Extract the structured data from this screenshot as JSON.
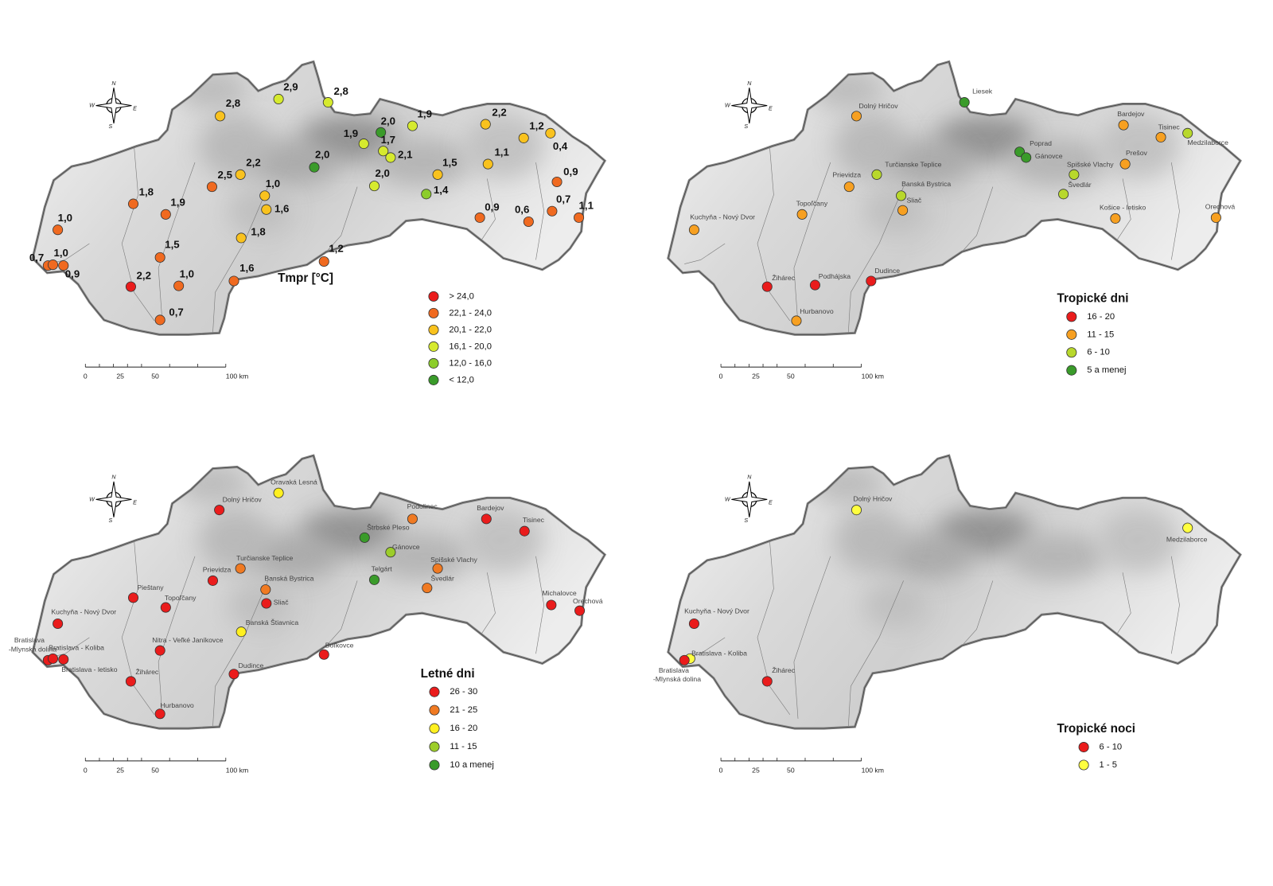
{
  "maps": [
    {
      "legend_title": "Tmpr [°C]",
      "legend": [
        {
          "label": "> 24,0",
          "color": "#ea1c1c"
        },
        {
          "label": "22,1 - 24,0",
          "color": "#f06a20"
        },
        {
          "label": "20,1 - 22,0",
          "color": "#f9c21e"
        },
        {
          "label": "16,1 - 20,0",
          "color": "#d6ea2e"
        },
        {
          "label": "12,0 - 16,0",
          "color": "#8ccd2a"
        },
        {
          "label": "< 12,0",
          "color": "#3a9b2a"
        }
      ],
      "stations": [
        {
          "label": "2,9",
          "class": 3
        },
        {
          "label": "2,8",
          "class": 3
        },
        {
          "label": "2,8",
          "class": 2
        },
        {
          "label": "2,0",
          "class": 5
        },
        {
          "label": "1,9",
          "class": 3
        },
        {
          "label": "2,2",
          "class": 2
        },
        {
          "label": "1,2",
          "class": 2
        },
        {
          "label": "0,4",
          "class": 2
        },
        {
          "label": "1,9",
          "class": 3
        },
        {
          "label": "1,7",
          "class": 3
        },
        {
          "label": "2,1",
          "class": 3
        },
        {
          "label": "2,0",
          "class": 5
        },
        {
          "label": "1,1",
          "class": 2
        },
        {
          "label": "1,5",
          "class": 2
        },
        {
          "label": "0,9",
          "class": 1
        },
        {
          "label": "2,5",
          "class": 1
        },
        {
          "label": "2,2",
          "class": 2
        },
        {
          "label": "2,0",
          "class": 3
        },
        {
          "label": "1,0",
          "class": 2
        },
        {
          "label": "1,4",
          "class": 4
        },
        {
          "label": "1,8",
          "class": 1
        },
        {
          "label": "1,9",
          "class": 1
        },
        {
          "label": "1,6",
          "class": 2
        },
        {
          "label": "0,9",
          "class": 1
        },
        {
          "label": "0,6",
          "class": 1
        },
        {
          "label": "0,7",
          "class": 1
        },
        {
          "label": "1,1",
          "class": 1
        },
        {
          "label": "1,0",
          "class": 1
        },
        {
          "label": "1,8",
          "class": 2
        },
        {
          "label": "1,5",
          "class": 1
        },
        {
          "label": "1,2",
          "class": 1
        },
        {
          "label": "0,7",
          "class": 1
        },
        {
          "label": "1,0",
          "class": 1
        },
        {
          "label": "0,9",
          "class": 1
        },
        {
          "label": "2,2",
          "class": 0
        },
        {
          "label": "1,0",
          "class": 1
        },
        {
          "label": "1,6",
          "class": 1
        },
        {
          "label": "0,7",
          "class": 1
        }
      ],
      "scale": [
        "0",
        "25",
        "50",
        "100 km"
      ],
      "compass": [
        "N",
        "W",
        "E",
        "S"
      ]
    },
    {
      "legend_title": "Tropické dni",
      "legend": [
        {
          "label": "16 - 20",
          "color": "#ea1c1c"
        },
        {
          "label": "11 - 15",
          "color": "#f7a021"
        },
        {
          "label": "6 - 10",
          "color": "#b8d82c"
        },
        {
          "label": "5 a menej",
          "color": "#3a9b2a"
        }
      ],
      "stations": [
        {
          "label": "Liesek",
          "class": 3
        },
        {
          "label": "Dolný Hričov",
          "class": 1
        },
        {
          "label": "Bardejov",
          "class": 1
        },
        {
          "label": "Tisinec",
          "class": 1
        },
        {
          "label": "Medzilaborce",
          "class": 2
        },
        {
          "label": "Poprad",
          "class": 3
        },
        {
          "label": "Gánovce",
          "class": 3
        },
        {
          "label": "Prešov",
          "class": 1
        },
        {
          "label": "Turčianske Teplice",
          "class": 2
        },
        {
          "label": "Spišské Vlachy",
          "class": 2
        },
        {
          "label": "Prievidza",
          "class": 1
        },
        {
          "label": "Banská  Bystrica",
          "class": 2
        },
        {
          "label": "Švedlár",
          "class": 2
        },
        {
          "label": "Sliač",
          "class": 1
        },
        {
          "label": "Topoľčany",
          "class": 1
        },
        {
          "label": "Košice - letisko",
          "class": 1
        },
        {
          "label": "Orechová",
          "class": 1
        },
        {
          "label": "Kuchyňa - Nový Dvor",
          "class": 1
        },
        {
          "label": "Žihárec",
          "class": 0
        },
        {
          "label": "Podhájska",
          "class": 0
        },
        {
          "label": "Dudince",
          "class": 0
        },
        {
          "label": "Hurbanovo",
          "class": 1
        }
      ],
      "scale": [
        "0",
        "25",
        "50",
        "100 km"
      ],
      "compass": [
        "N",
        "W",
        "E",
        "S"
      ]
    },
    {
      "legend_title": "Letné dni",
      "legend": [
        {
          "label": "26 - 30",
          "color": "#ea1c1c"
        },
        {
          "label": "21 - 25",
          "color": "#f07a22"
        },
        {
          "label": "16 - 20",
          "color": "#fff020"
        },
        {
          "label": "11 - 15",
          "color": "#9ccd2a"
        },
        {
          "label": "10 a menej",
          "color": "#3a9b2a"
        }
      ],
      "stations": [
        {
          "label": "Oravaká Lesná",
          "class": 2
        },
        {
          "label": "Dolný Hričov",
          "class": 0
        },
        {
          "label": "Podolinec",
          "class": 1
        },
        {
          "label": "Bardejov",
          "class": 0
        },
        {
          "label": "Tisinec",
          "class": 0
        },
        {
          "label": "Štrbské Pleso",
          "class": 4
        },
        {
          "label": "Gánovce",
          "class": 3
        },
        {
          "label": "Turčianske Teplice",
          "class": 1
        },
        {
          "label": "Spišské Vlachy",
          "class": 1
        },
        {
          "label": "Prievidza",
          "class": 0
        },
        {
          "label": "Telgárt",
          "class": 4
        },
        {
          "label": "Banská  Bystrica",
          "class": 1
        },
        {
          "label": "Švedlár",
          "class": 1
        },
        {
          "label": "Pieštany",
          "class": 0
        },
        {
          "label": "Sliač",
          "class": 0
        },
        {
          "label": "Topoľčany",
          "class": 0
        },
        {
          "label": "Michalovce",
          "class": 0
        },
        {
          "label": "Orechová",
          "class": 0
        },
        {
          "label": "Kuchyňa - Nový Dvor",
          "class": 0
        },
        {
          "label": "Banská Štiavnica",
          "class": 2
        },
        {
          "label": "Nitra - Veľké Janíkovce",
          "class": 0
        },
        {
          "label": [
            "Bratislava",
            "-Mlynská dolina"
          ],
          "class": 0
        },
        {
          "label": "Bratislava - letisko",
          "class": 0
        },
        {
          "label": "Bratislava - Koliba",
          "class": 0
        },
        {
          "label": "Boľkovce",
          "class": 0
        },
        {
          "label": "Žihárec",
          "class": 0
        },
        {
          "label": "Dudince",
          "class": 0
        },
        {
          "label": "Hurbanovo",
          "class": 0
        }
      ],
      "scale": [
        "0",
        "25",
        "50",
        "100 km"
      ],
      "compass": [
        "N",
        "W",
        "E",
        "S"
      ]
    },
    {
      "legend_title": "Tropické noci",
      "legend": [
        {
          "label": "6 - 10",
          "color": "#ea1c1c"
        },
        {
          "label": "1 - 5",
          "color": "#ffff40"
        }
      ],
      "stations": [
        {
          "label": "Dolný Hričov",
          "class": 1
        },
        {
          "label": "Medzilaborce",
          "class": 1
        },
        {
          "label": "Kuchyňa - Nový Dvor",
          "class": 0
        },
        {
          "label": "Bratislava - Koliba",
          "class": 1
        },
        {
          "label": [
            "Bratislava",
            "-Mlynská dolina"
          ],
          "class": 0
        },
        {
          "label": "Žihárec",
          "class": 0
        }
      ],
      "scale": [
        "0",
        "25",
        "50",
        "100 km"
      ],
      "compass": [
        "N",
        "W",
        "E",
        "S"
      ]
    }
  ]
}
